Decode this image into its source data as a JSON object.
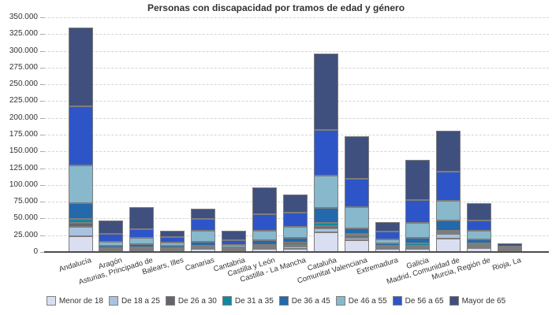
{
  "title": "Personas con discapacidad por tramos de edad y género",
  "chart_data": {
    "type": "bar",
    "stacked": true,
    "title": "Personas con discapacidad por tramos de edad y género",
    "categories": [
      "Andalucía",
      "Aragón",
      "Asturias, Principado de",
      "Balears, Illes",
      "Canarias",
      "Cantabria",
      "Castilla y León",
      "Castilla - La Mancha",
      "Cataluña",
      "Comunitat Valenciana",
      "Extremadura",
      "Galicia",
      "Madrid, Comunidad de",
      "Murcia, Región de",
      "Rioja, La"
    ],
    "series": [
      {
        "name": "Menor de 18",
        "color": "#d9def0",
        "values": [
          23500,
          2200,
          2800,
          2500,
          4300,
          2400,
          4300,
          5000,
          29400,
          17600,
          4700,
          4700,
          20300,
          6200,
          1500
        ]
      },
      {
        "name": "De 18 a 25",
        "color": "#a9c2e2",
        "values": [
          13700,
          1000,
          1200,
          1100,
          1500,
          800,
          1900,
          2800,
          5900,
          3500,
          1600,
          2300,
          7100,
          2400,
          700
        ]
      },
      {
        "name": "De 26 a 30",
        "color": "#63666c",
        "values": [
          5900,
          1500,
          1500,
          1300,
          2000,
          1000,
          2000,
          3000,
          3200,
          3500,
          1500,
          2700,
          2000,
          2000,
          700
        ]
      },
      {
        "name": "De 31 a 35",
        "color": "#12889f",
        "values": [
          5900,
          1200,
          1200,
          1000,
          1900,
          800,
          2300,
          2800,
          4700,
          2400,
          1200,
          2900,
          2700,
          2000,
          700
        ]
      },
      {
        "name": "De 36 a 45",
        "color": "#2369ab",
        "values": [
          23500,
          3800,
          5000,
          3500,
          5900,
          2000,
          7000,
          7800,
          22300,
          8200,
          3600,
          8900,
          14900,
          6300,
          1300
        ]
      },
      {
        "name": "De 46 a 55",
        "color": "#87b8cc",
        "values": [
          56700,
          5900,
          9800,
          4300,
          15700,
          3600,
          13700,
          15700,
          48200,
          31300,
          5800,
          22300,
          29300,
          12500,
          1400
        ]
      },
      {
        "name": "De 56 a 65",
        "color": "#2e55c8",
        "values": [
          88100,
          11800,
          12500,
          9000,
          17700,
          7000,
          25400,
          21600,
          68500,
          43000,
          11800,
          33300,
          43100,
          15700,
          2400
        ]
      },
      {
        "name": "Mayor de 65",
        "color": "#40507e",
        "values": [
          117400,
          19600,
          32600,
          9300,
          15600,
          13700,
          39700,
          27400,
          114100,
          62600,
          14800,
          60700,
          61500,
          25300,
          4300
        ]
      }
    ],
    "y_axis": {
      "min": 0,
      "max": 350000,
      "step": 25000,
      "tick_labels_top_to_bottom": [
        "350.000",
        "325.000",
        "300.000",
        "275.000",
        "250.000",
        "225.000",
        "200.000",
        "175.000",
        "150.000",
        "125.000",
        "100.000",
        "75.000",
        "50.000",
        "25.000",
        "0"
      ]
    },
    "grid": "horizontal dashed",
    "legend_position": "bottom",
    "colors": {
      "axis_line": "#4c4c4c",
      "gridline": "#d4d4d4",
      "segment_border": "#7d7d7d",
      "text": "#333333",
      "background": "#ffffff"
    }
  }
}
